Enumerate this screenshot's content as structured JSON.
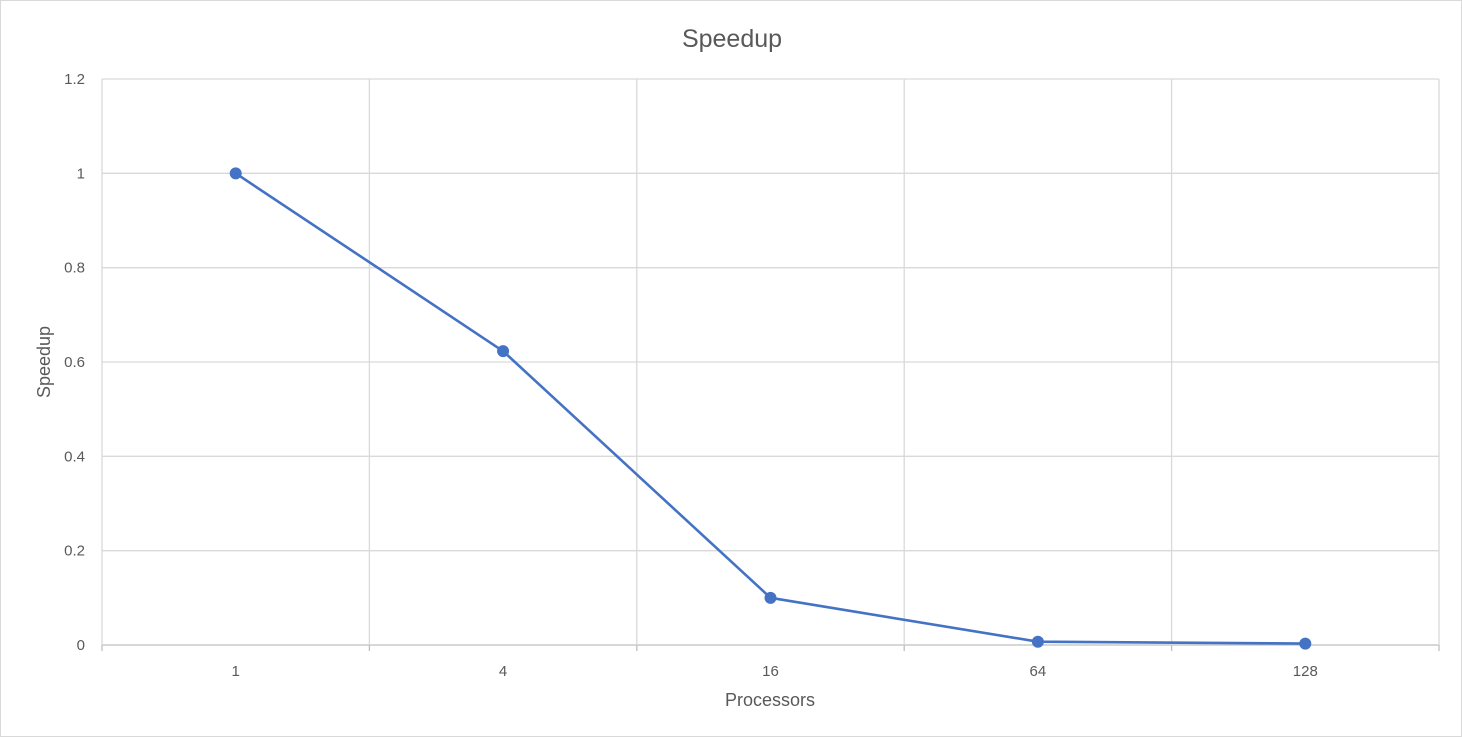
{
  "chart_data": {
    "type": "line",
    "title": "Speedup",
    "xlabel": "Processors",
    "ylabel": "Speedup",
    "categories": [
      "1",
      "4",
      "16",
      "64",
      "128"
    ],
    "series": [
      {
        "values": [
          1.0,
          0.623,
          0.1,
          0.007,
          0.003
        ],
        "color": "#4472c4"
      }
    ],
    "ylim": [
      0,
      1.2
    ],
    "yticks": [
      "0",
      "0.2",
      "0.4",
      "0.6",
      "0.8",
      "1",
      "1.2"
    ],
    "grid": true,
    "legend": "none",
    "markers": true
  }
}
